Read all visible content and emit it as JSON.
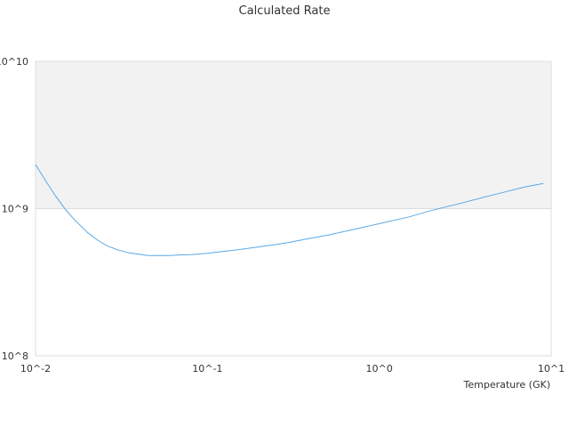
{
  "chart_data": {
    "type": "line",
    "title": "Calculated Rate",
    "xlabel": "Temperature (GK)",
    "ylabel": "",
    "x_scale": "log",
    "y_scale": "log",
    "xlim": [
      0.01,
      10
    ],
    "ylim": [
      100000000,
      10000000000
    ],
    "grid": true,
    "legend": "none",
    "x_ticks": [
      {
        "value": 0.01,
        "label": "10^-2"
      },
      {
        "value": 0.1,
        "label": "10^-1"
      },
      {
        "value": 1,
        "label": "10^0"
      },
      {
        "value": 10,
        "label": "10^1"
      }
    ],
    "y_ticks": [
      {
        "value": 100000000,
        "label": "10^8"
      },
      {
        "value": 1000000000,
        "label": "10^9"
      },
      {
        "value": 10000000000,
        "label": "10^10"
      }
    ],
    "bands": [
      {
        "y_from": 1000000000,
        "y_to": 10000000000,
        "color": "#f2f2f2"
      }
    ],
    "series": [
      {
        "color": "#5aa9e6",
        "x": [
          0.01,
          0.0115,
          0.013,
          0.015,
          0.017,
          0.02,
          0.023,
          0.026,
          0.03,
          0.035,
          0.04,
          0.045,
          0.05,
          0.06,
          0.07,
          0.08,
          0.09,
          0.1,
          0.12,
          0.15,
          0.2,
          0.25,
          0.3,
          0.4,
          0.5,
          0.7,
          1.0,
          1.5,
          2.0,
          3.0,
          4.0,
          5.0,
          7.0,
          9.0
        ],
        "y": [
          1990000000,
          1530000000,
          1230000000,
          980000000,
          830000000,
          690000000,
          610000000,
          560000000,
          525000000,
          500000000,
          490000000,
          480000000,
          480000000,
          480000000,
          485000000,
          487000000,
          492000000,
          497000000,
          510000000,
          525000000,
          550000000,
          570000000,
          590000000,
          630000000,
          660000000,
          720000000,
          790000000,
          880000000,
          970000000,
          1090000000,
          1190000000,
          1270000000,
          1400000000,
          1480000000
        ]
      }
    ]
  }
}
